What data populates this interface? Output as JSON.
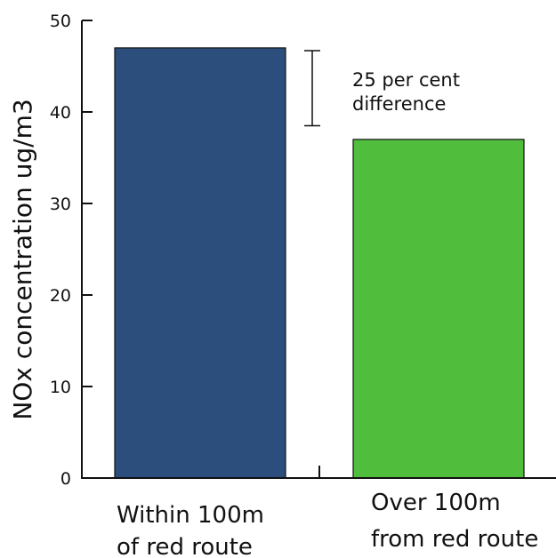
{
  "chart_data": {
    "type": "bar",
    "categories": [
      [
        "Within 100m",
        "of red route"
      ],
      [
        "Over 100m",
        "from red route"
      ]
    ],
    "values": [
      47,
      37
    ],
    "colors": [
      "#2c4e7c",
      "#50bd3c"
    ],
    "ylabel": "NOx concentration ug/m3",
    "xlabel": "",
    "ylim": [
      0,
      50
    ],
    "yticks": [
      0,
      10,
      20,
      30,
      40,
      50
    ],
    "ytick_labels": [
      "0",
      "10",
      "20",
      "30",
      "40",
      "50"
    ],
    "grid": false,
    "annotation": {
      "lines": [
        "25 per cent",
        "difference"
      ],
      "from": 38.5,
      "to": 46.7
    }
  }
}
